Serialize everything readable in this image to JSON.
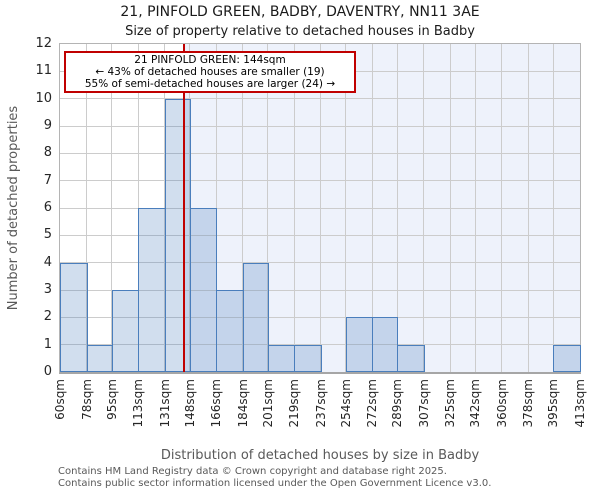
{
  "title": "21, PINFOLD GREEN, BADBY, DAVENTRY, NN11 3AE",
  "subtitle": "Size of property relative to detached houses in Badby",
  "chart_data": {
    "type": "bar",
    "title": "21, PINFOLD GREEN, BADBY, DAVENTRY, NN11 3AE",
    "subtitle": "Size of property relative to detached houses in Badby",
    "xlabel": "Distribution of detached houses by size in Badby",
    "ylabel": "Number of detached properties",
    "bin_edges_sqm": [
      60,
      78,
      95,
      113,
      131,
      148,
      166,
      184,
      201,
      219,
      237,
      254,
      272,
      289,
      307,
      325,
      342,
      360,
      378,
      395,
      413
    ],
    "bin_labels": [
      "60sqm",
      "78sqm",
      "95sqm",
      "113sqm",
      "131sqm",
      "148sqm",
      "166sqm",
      "184sqm",
      "201sqm",
      "219sqm",
      "237sqm",
      "254sqm",
      "272sqm",
      "289sqm",
      "307sqm",
      "325sqm",
      "342sqm",
      "360sqm",
      "378sqm",
      "395sqm",
      "413sqm"
    ],
    "values": [
      4,
      1,
      3,
      6,
      10,
      6,
      3,
      4,
      1,
      1,
      0,
      2,
      2,
      1,
      0,
      0,
      0,
      0,
      0,
      1
    ],
    "ylim": [
      0,
      12
    ],
    "y_ticks": [
      0,
      1,
      2,
      3,
      4,
      5,
      6,
      7,
      8,
      9,
      10,
      11,
      12
    ],
    "grid": true,
    "legend": "none",
    "marker_value_sqm": 144,
    "shaded_region": "right-of-marker-to-max"
  },
  "annotation": {
    "line1": "21 PINFOLD GREEN: 144sqm",
    "line2": "← 43% of detached houses are smaller (19)",
    "line3": "55% of semi-detached houses are larger (24) →"
  },
  "footer": {
    "line1": "Contains HM Land Registry data © Crown copyright and database right 2025.",
    "line2": "Contains public sector information licensed under the Open Government Licence v3.0."
  },
  "colors": {
    "bar_fill": "rgba(79,129,189,0.26)",
    "bar_stroke": "#4a7ebc",
    "marker_line": "#c00000",
    "annotation_border": "#c00000",
    "annotation_bg": "#ffffff",
    "shaded_bg": "#eef2fb",
    "grid": "#cccccc",
    "tick_text": "#262626",
    "label_text": "#595959"
  }
}
